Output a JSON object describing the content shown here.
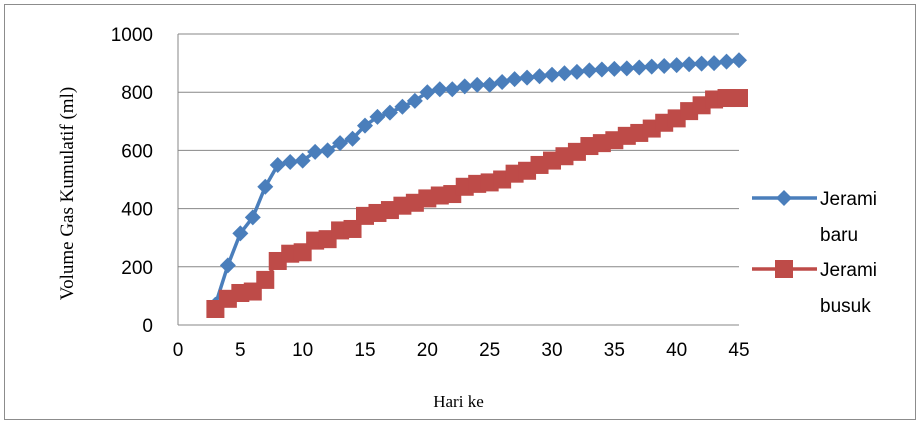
{
  "chart_data": {
    "type": "line",
    "xlabel": "Hari ke",
    "ylabel": "Volume Gas Kumulatif (ml)",
    "xlim": [
      0,
      45
    ],
    "ylim": [
      0,
      1000
    ],
    "x_ticks": [
      0,
      5,
      10,
      15,
      20,
      25,
      30,
      35,
      40,
      45
    ],
    "y_ticks": [
      0,
      200,
      400,
      600,
      800,
      1000
    ],
    "grid": "horizontal",
    "legend_position": "right",
    "series": [
      {
        "name_lines": [
          "Jerami",
          "baru"
        ],
        "color": "#4a7ebb",
        "marker": "diamond",
        "x": [
          3,
          4,
          5,
          6,
          7,
          8,
          9,
          10,
          11,
          12,
          13,
          14,
          15,
          16,
          17,
          18,
          19,
          20,
          21,
          22,
          23,
          24,
          25,
          26,
          27,
          28,
          29,
          30,
          31,
          32,
          33,
          34,
          35,
          36,
          37,
          38,
          39,
          40,
          41,
          42,
          43,
          44,
          45
        ],
        "y": [
          70,
          205,
          315,
          370,
          475,
          550,
          560,
          565,
          595,
          600,
          625,
          640,
          685,
          715,
          730,
          750,
          770,
          800,
          810,
          810,
          820,
          825,
          825,
          835,
          845,
          850,
          855,
          860,
          865,
          870,
          875,
          878,
          880,
          882,
          885,
          888,
          890,
          893,
          896,
          898,
          900,
          905,
          910
        ]
      },
      {
        "name_lines": [
          "Jerami",
          "busuk"
        ],
        "color": "#be4b48",
        "marker": "square",
        "x": [
          3,
          4,
          5,
          6,
          7,
          8,
          9,
          10,
          11,
          12,
          13,
          14,
          15,
          16,
          17,
          18,
          19,
          20,
          21,
          22,
          23,
          24,
          25,
          26,
          27,
          28,
          29,
          30,
          31,
          32,
          33,
          34,
          35,
          36,
          37,
          38,
          39,
          40,
          41,
          42,
          43,
          44,
          45
        ],
        "y": [
          55,
          90,
          110,
          115,
          155,
          220,
          245,
          250,
          290,
          295,
          325,
          330,
          375,
          385,
          395,
          410,
          420,
          435,
          445,
          450,
          475,
          485,
          490,
          500,
          520,
          530,
          550,
          565,
          580,
          595,
          615,
          625,
          635,
          650,
          660,
          675,
          695,
          710,
          735,
          755,
          775,
          780,
          780
        ]
      }
    ]
  }
}
